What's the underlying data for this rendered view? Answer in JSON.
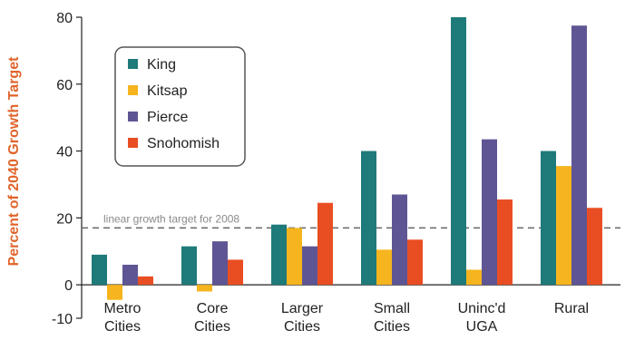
{
  "chart_data": {
    "type": "bar",
    "ylabel": "Percent of 2040 Growth Target",
    "ylim": [
      -10,
      80
    ],
    "yticks": [
      -10,
      0,
      20,
      40,
      60,
      80
    ],
    "ytick_labels": [
      "-10",
      "0",
      "20",
      "40",
      "60",
      "80"
    ],
    "categories": [
      [
        "Metro",
        "Cities"
      ],
      [
        "Core",
        "Cities"
      ],
      [
        "Larger",
        "Cities"
      ],
      [
        "Small",
        "Cities"
      ],
      [
        "Uninc'd",
        "UGA"
      ],
      [
        "Rural"
      ]
    ],
    "series": [
      {
        "name": "King",
        "color": "#1f7a7a",
        "values": [
          9,
          11.5,
          18,
          40,
          80,
          40
        ]
      },
      {
        "name": "Kitsap",
        "color": "#f6b51e",
        "values": [
          -4.5,
          -2,
          17,
          10.5,
          4.5,
          35.5
        ]
      },
      {
        "name": "Pierce",
        "color": "#5e5694",
        "values": [
          6,
          13,
          11.5,
          27,
          43.5,
          77.5
        ]
      },
      {
        "name": "Snohomish",
        "color": "#e94e22",
        "values": [
          2.5,
          7.5,
          24.5,
          13.5,
          25.5,
          23
        ]
      }
    ],
    "reference_line": {
      "value": 17,
      "label": "linear growth target for 2008",
      "color": "#666666"
    },
    "legend_position": "top-left",
    "grid": false,
    "ylabel_color": "#e0642a"
  }
}
